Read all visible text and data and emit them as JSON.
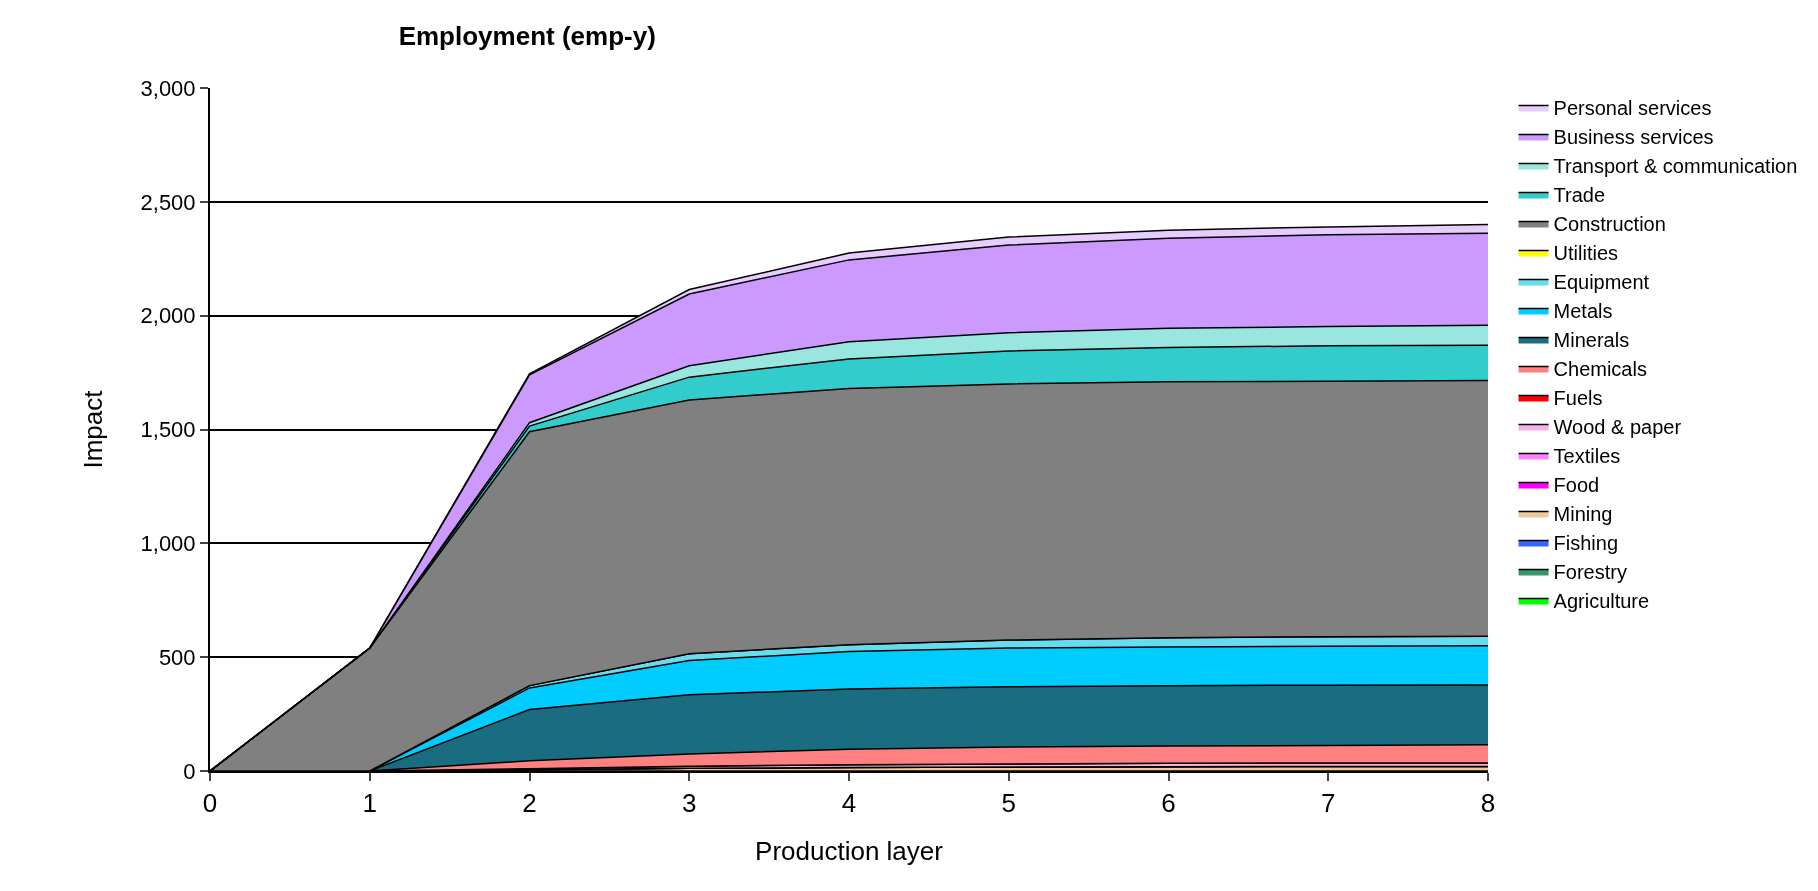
{
  "chart_data": {
    "type": "area",
    "title": "Employment (emp-y)",
    "xlabel": "Production layer",
    "ylabel": "Impact",
    "stacked": true,
    "x": [
      0,
      1,
      2,
      3,
      4,
      5,
      6,
      7,
      8
    ],
    "xlim": [
      0,
      8
    ],
    "xticks": [
      0,
      1,
      2,
      3,
      4,
      5,
      6,
      7,
      8
    ],
    "ylim": [
      0,
      3000
    ],
    "yticks": [
      {
        "value": 0,
        "label": "0"
      },
      {
        "value": 500,
        "label": "500"
      },
      {
        "value": 1000,
        "label": "1,000"
      },
      {
        "value": 1500,
        "label": "1,500"
      },
      {
        "value": 2000,
        "label": "2,000"
      },
      {
        "value": 2500,
        "label": "2,500"
      },
      {
        "value": 3000,
        "label": "3,000"
      }
    ],
    "grid": "y",
    "legend": "right",
    "series": [
      {
        "name": "Agriculture",
        "color": "#00ff00",
        "values": [
          null,
          null,
          null,
          null,
          null,
          null,
          null,
          null,
          null
        ]
      },
      {
        "name": "Forestry",
        "color": "#339966",
        "values": [
          null,
          null,
          null,
          null,
          null,
          null,
          null,
          null,
          null
        ]
      },
      {
        "name": "Fishing",
        "color": "#3366ff",
        "values": [
          null,
          null,
          null,
          null,
          null,
          null,
          null,
          null,
          null
        ]
      },
      {
        "name": "Mining",
        "color": "#f0c8a0",
        "values": [
          0,
          0,
          5,
          12,
          15,
          18,
          19,
          20,
          20
        ]
      },
      {
        "name": "Food",
        "color": "#ff00ff",
        "values": [
          null,
          null,
          null,
          null,
          null,
          null,
          null,
          null,
          null
        ]
      },
      {
        "name": "Textiles",
        "color": "#ff80ff",
        "values": [
          null,
          null,
          null,
          null,
          null,
          null,
          null,
          null,
          null
        ]
      },
      {
        "name": "Wood & paper",
        "color": "#f8b0e8",
        "values": [
          0,
          0,
          5,
          9,
          12,
          13,
          15,
          15,
          15
        ]
      },
      {
        "name": "Fuels",
        "color": "#ff0000",
        "values": [
          null,
          null,
          null,
          null,
          null,
          null,
          null,
          null,
          null
        ]
      },
      {
        "name": "Chemicals",
        "color": "#ff8080",
        "values": [
          0,
          0,
          35,
          54,
          68,
          74,
          76,
          77,
          80
        ]
      },
      {
        "name": "Minerals",
        "color": "#1a6c80",
        "values": [
          0,
          0,
          225,
          260,
          265,
          265,
          265,
          265,
          263
        ]
      },
      {
        "name": "Metals",
        "color": "#00ccff",
        "values": [
          0,
          0,
          95,
          150,
          165,
          170,
          170,
          171,
          172
        ]
      },
      {
        "name": "Equipment",
        "color": "#66ddee",
        "values": [
          0,
          0,
          10,
          30,
          30,
          35,
          40,
          42,
          42
        ]
      },
      {
        "name": "Utilities",
        "color": "#ffff00",
        "values": [
          null,
          null,
          null,
          null,
          null,
          null,
          null,
          null,
          null
        ]
      },
      {
        "name": "Construction",
        "color": "#808080",
        "values": [
          0,
          540,
          1115,
          1115,
          1125,
          1125,
          1125,
          1122,
          1123
        ]
      },
      {
        "name": "Trade",
        "color": "#33cccc",
        "values": [
          0,
          0,
          25,
          100,
          130,
          145,
          150,
          156,
          155
        ]
      },
      {
        "name": "Transport & communication",
        "color": "#99e6e0",
        "values": [
          0,
          0,
          15,
          50,
          75,
          80,
          85,
          84,
          88
        ]
      },
      {
        "name": "Business services",
        "color": "#cc99ff",
        "values": [
          0,
          0,
          210,
          315,
          360,
          385,
          395,
          403,
          404
        ]
      },
      {
        "name": "Personal services",
        "color": "#e6ccff",
        "values": [
          0,
          0,
          5,
          20,
          30,
          35,
          35,
          35,
          38
        ]
      }
    ]
  }
}
